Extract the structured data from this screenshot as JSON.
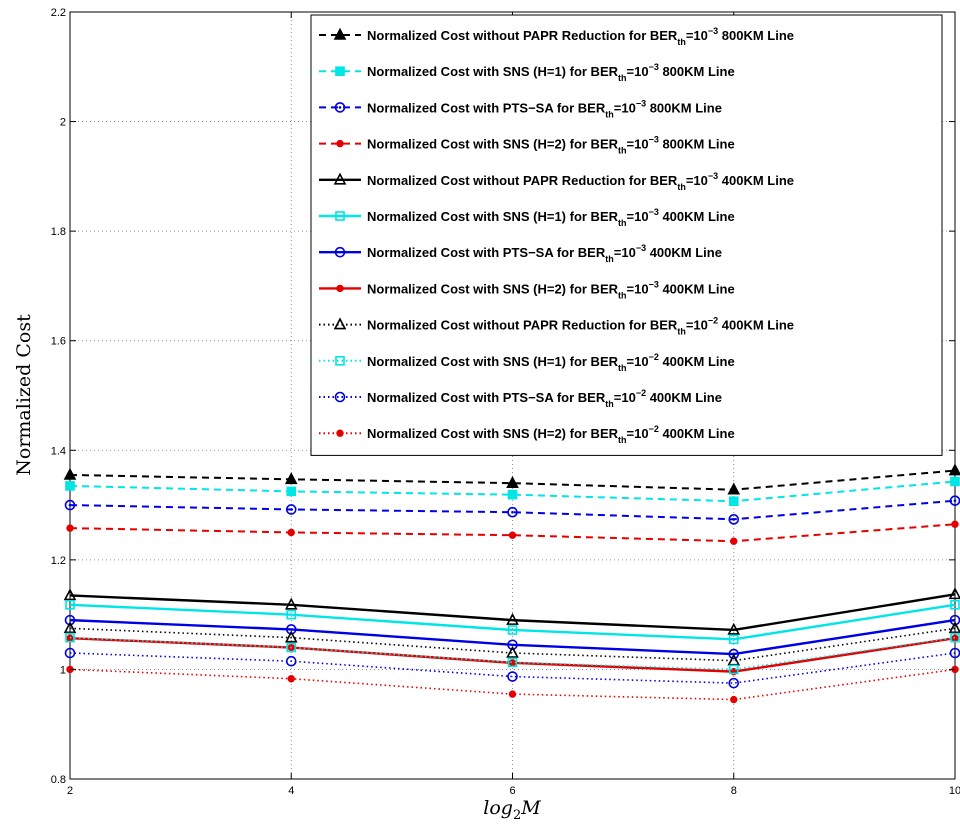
{
  "chart_data": {
    "type": "line",
    "xlabel_main": "log",
    "xlabel_sub": "2",
    "xlabel_tail": "M",
    "ylabel": "Normalized Cost",
    "xlim": [
      2,
      10
    ],
    "ylim": [
      0.8,
      2.2
    ],
    "xticks": [
      "2",
      "4",
      "6",
      "8",
      "10"
    ],
    "yticks": [
      "0.8",
      "1",
      "1.2",
      "1.4",
      "1.6",
      "1.8",
      "2",
      "2.2"
    ],
    "grid": true,
    "legend_position": "top-right",
    "x": [
      2,
      4,
      6,
      8,
      10
    ],
    "series": [
      {
        "name_pre": "Normalized Cost without PAPR Reduction for BER",
        "name_sub": "th",
        "name_eq": "=10",
        "name_sup": "−3",
        "name_post": " 800KM Line",
        "color": "#000000",
        "style": "dashed",
        "marker": "filled-triangle",
        "values": [
          1.355,
          1.347,
          1.34,
          1.328,
          1.363
        ]
      },
      {
        "name_pre": "Normalized Cost with SNS (H=1) for BER",
        "name_sub": "th",
        "name_eq": "=10",
        "name_sup": "−3",
        "name_post": " 800KM Line",
        "color": "#00e5e5",
        "style": "dashed",
        "marker": "filled-square",
        "values": [
          1.335,
          1.325,
          1.319,
          1.307,
          1.343
        ]
      },
      {
        "name_pre": "Normalized Cost with PTS−SA for BER",
        "name_sub": "th",
        "name_eq": "=10",
        "name_sup": "−3",
        "name_post": " 800KM Line",
        "color": "#0000e5",
        "style": "dashed",
        "marker": "circle-dot",
        "values": [
          1.3,
          1.292,
          1.287,
          1.274,
          1.308
        ]
      },
      {
        "name_pre": "Normalized Cost with SNS (H=2) for BER",
        "name_sub": "th",
        "name_eq": "=10",
        "name_sup": "−3",
        "name_post": " 800KM Line",
        "color": "#e50000",
        "style": "dashed",
        "marker": "filled-circle",
        "values": [
          1.258,
          1.25,
          1.245,
          1.234,
          1.265
        ]
      },
      {
        "name_pre": "Normalized Cost without PAPR Reduction for BER",
        "name_sub": "th",
        "name_eq": "=10",
        "name_sup": "−3",
        "name_post": " 400KM Line",
        "color": "#000000",
        "style": "solid",
        "marker": "open-triangle",
        "values": [
          1.135,
          1.118,
          1.09,
          1.072,
          1.137
        ]
      },
      {
        "name_pre": "Normalized Cost with SNS (H=1) for BER",
        "name_sub": "th",
        "name_eq": "=10",
        "name_sup": "−3",
        "name_post": " 400KM Line",
        "color": "#00e5e5",
        "style": "solid",
        "marker": "open-square",
        "values": [
          1.118,
          1.1,
          1.072,
          1.055,
          1.118
        ]
      },
      {
        "name_pre": "Normalized Cost with PTS−SA for BER",
        "name_sub": "th",
        "name_eq": "=10",
        "name_sup": "−3",
        "name_post": " 400KM Line",
        "color": "#0000e5",
        "style": "solid",
        "marker": "open-circle",
        "values": [
          1.09,
          1.073,
          1.045,
          1.028,
          1.09
        ]
      },
      {
        "name_pre": "Normalized Cost with SNS (H=2) for BER",
        "name_sub": "th",
        "name_eq": "=10",
        "name_sup": "−3",
        "name_post": " 400KM Line",
        "color": "#e50000",
        "style": "solid",
        "marker": "filled-circle",
        "values": [
          1.057,
          1.04,
          1.012,
          0.996,
          1.057
        ]
      },
      {
        "name_pre": "Normalized Cost without PAPR Reduction for BER",
        "name_sub": "th",
        "name_eq": "=10",
        "name_sup": "−2",
        "name_post": " 400KM Line",
        "color": "#000000",
        "style": "dotted",
        "marker": "open-triangle",
        "values": [
          1.075,
          1.058,
          1.03,
          1.016,
          1.075
        ]
      },
      {
        "name_pre": "Normalized Cost with SNS (H=1) for BER",
        "name_sub": "th",
        "name_eq": "=10",
        "name_sup": "−2",
        "name_post": " 400KM Line",
        "color": "#00e5e5",
        "style": "dotted",
        "marker": "open-square",
        "values": [
          1.058,
          1.04,
          1.013,
          1.0,
          1.058
        ]
      },
      {
        "name_pre": "Normalized Cost with PTS−SA for BER",
        "name_sub": "th",
        "name_eq": "=10",
        "name_sup": "−2",
        "name_post": " 400KM Line",
        "color": "#0000e5",
        "style": "dotted",
        "marker": "open-circle",
        "values": [
          1.03,
          1.015,
          0.987,
          0.975,
          1.03
        ]
      },
      {
        "name_pre": "Normalized Cost with SNS (H=2) for BER",
        "name_sub": "th",
        "name_eq": "=10",
        "name_sup": "−2",
        "name_post": " 400KM Line",
        "color": "#e50000",
        "style": "dotted",
        "marker": "filled-circle",
        "values": [
          1.0,
          0.983,
          0.955,
          0.945,
          1.0
        ]
      }
    ]
  }
}
